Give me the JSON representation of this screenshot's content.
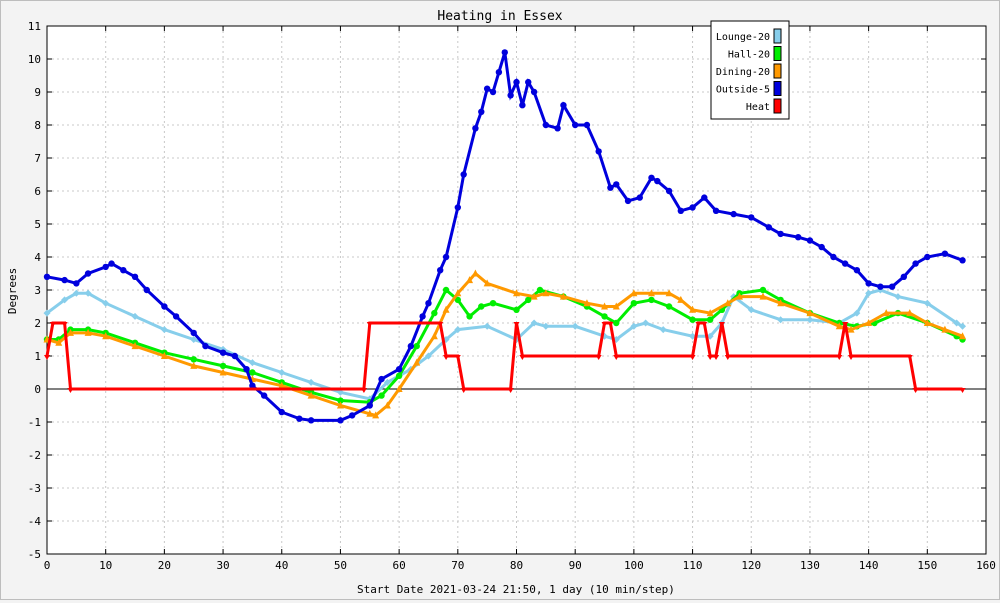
{
  "chart_data": {
    "type": "line",
    "title": "Heating in Essex",
    "xlabel": "Start Date 2021-03-24 21:50, 1 day (10 min/step)",
    "ylabel": "Degrees",
    "xlim": [
      0,
      160
    ],
    "ylim": [
      -5,
      11
    ],
    "xticks": [
      0,
      10,
      20,
      30,
      40,
      50,
      60,
      70,
      80,
      90,
      100,
      110,
      120,
      130,
      140,
      150,
      160
    ],
    "yticks": [
      -5,
      -4,
      -3,
      -2,
      -1,
      0,
      1,
      2,
      3,
      4,
      5,
      6,
      7,
      8,
      9,
      10,
      11
    ],
    "grid": true,
    "legend_position": "top-right",
    "series": [
      {
        "name": "Lounge-20",
        "color": "#87ceeb",
        "marker": "diamond",
        "points": [
          [
            0,
            2.3
          ],
          [
            3,
            2.7
          ],
          [
            5,
            2.9
          ],
          [
            7,
            2.9
          ],
          [
            10,
            2.6
          ],
          [
            15,
            2.2
          ],
          [
            20,
            1.8
          ],
          [
            25,
            1.5
          ],
          [
            30,
            1.2
          ],
          [
            35,
            0.8
          ],
          [
            40,
            0.5
          ],
          [
            45,
            0.2
          ],
          [
            50,
            -0.1
          ],
          [
            55,
            -0.3
          ],
          [
            58,
            0.2
          ],
          [
            62,
            0.6
          ],
          [
            65,
            1.0
          ],
          [
            68,
            1.5
          ],
          [
            70,
            1.8
          ],
          [
            75,
            1.9
          ],
          [
            80,
            1.5
          ],
          [
            83,
            2.0
          ],
          [
            85,
            1.9
          ],
          [
            90,
            1.9
          ],
          [
            95,
            1.6
          ],
          [
            97,
            1.5
          ],
          [
            100,
            1.9
          ],
          [
            102,
            2.0
          ],
          [
            105,
            1.8
          ],
          [
            110,
            1.6
          ],
          [
            113,
            1.6
          ],
          [
            115,
            2.0
          ],
          [
            117,
            2.8
          ],
          [
            120,
            2.4
          ],
          [
            125,
            2.1
          ],
          [
            130,
            2.1
          ],
          [
            135,
            2.0
          ],
          [
            138,
            2.3
          ],
          [
            140,
            2.9
          ],
          [
            142,
            3.0
          ],
          [
            145,
            2.8
          ],
          [
            150,
            2.6
          ],
          [
            155,
            2.0
          ],
          [
            156,
            1.9
          ]
        ]
      },
      {
        "name": "Hall-20",
        "color": "#00ee00",
        "marker": "circle",
        "points": [
          [
            0,
            1.5
          ],
          [
            2,
            1.5
          ],
          [
            4,
            1.8
          ],
          [
            7,
            1.8
          ],
          [
            10,
            1.7
          ],
          [
            15,
            1.4
          ],
          [
            20,
            1.1
          ],
          [
            25,
            0.9
          ],
          [
            30,
            0.7
          ],
          [
            35,
            0.5
          ],
          [
            40,
            0.2
          ],
          [
            45,
            -0.1
          ],
          [
            50,
            -0.35
          ],
          [
            55,
            -0.4
          ],
          [
            57,
            -0.2
          ],
          [
            60,
            0.4
          ],
          [
            63,
            1.3
          ],
          [
            66,
            2.3
          ],
          [
            68,
            3.0
          ],
          [
            70,
            2.7
          ],
          [
            72,
            2.2
          ],
          [
            74,
            2.5
          ],
          [
            76,
            2.6
          ],
          [
            80,
            2.4
          ],
          [
            82,
            2.7
          ],
          [
            84,
            3.0
          ],
          [
            88,
            2.8
          ],
          [
            92,
            2.5
          ],
          [
            95,
            2.2
          ],
          [
            97,
            2.0
          ],
          [
            100,
            2.6
          ],
          [
            103,
            2.7
          ],
          [
            106,
            2.5
          ],
          [
            110,
            2.1
          ],
          [
            113,
            2.1
          ],
          [
            115,
            2.4
          ],
          [
            118,
            2.9
          ],
          [
            122,
            3.0
          ],
          [
            125,
            2.7
          ],
          [
            130,
            2.3
          ],
          [
            135,
            2.0
          ],
          [
            138,
            1.9
          ],
          [
            141,
            2.0
          ],
          [
            145,
            2.3
          ],
          [
            150,
            2.0
          ],
          [
            155,
            1.6
          ],
          [
            156,
            1.5
          ]
        ]
      },
      {
        "name": "Dining-20",
        "color": "#ff9900",
        "marker": "triangle",
        "points": [
          [
            0,
            1.5
          ],
          [
            2,
            1.4
          ],
          [
            4,
            1.7
          ],
          [
            7,
            1.7
          ],
          [
            10,
            1.6
          ],
          [
            15,
            1.3
          ],
          [
            20,
            1.0
          ],
          [
            25,
            0.7
          ],
          [
            30,
            0.5
          ],
          [
            35,
            0.3
          ],
          [
            40,
            0.1
          ],
          [
            45,
            -0.2
          ],
          [
            50,
            -0.5
          ],
          [
            55,
            -0.75
          ],
          [
            56,
            -0.8
          ],
          [
            58,
            -0.5
          ],
          [
            60,
            0.0
          ],
          [
            63,
            0.8
          ],
          [
            66,
            1.6
          ],
          [
            68,
            2.4
          ],
          [
            70,
            2.9
          ],
          [
            72,
            3.3
          ],
          [
            73,
            3.5
          ],
          [
            75,
            3.2
          ],
          [
            80,
            2.9
          ],
          [
            83,
            2.8
          ],
          [
            85,
            2.9
          ],
          [
            88,
            2.8
          ],
          [
            92,
            2.6
          ],
          [
            95,
            2.5
          ],
          [
            97,
            2.5
          ],
          [
            100,
            2.9
          ],
          [
            103,
            2.9
          ],
          [
            106,
            2.9
          ],
          [
            108,
            2.7
          ],
          [
            110,
            2.4
          ],
          [
            113,
            2.3
          ],
          [
            116,
            2.6
          ],
          [
            118,
            2.8
          ],
          [
            122,
            2.8
          ],
          [
            125,
            2.6
          ],
          [
            130,
            2.3
          ],
          [
            135,
            1.9
          ],
          [
            137,
            1.8
          ],
          [
            140,
            2.0
          ],
          [
            143,
            2.3
          ],
          [
            147,
            2.3
          ],
          [
            150,
            2.0
          ],
          [
            153,
            1.8
          ],
          [
            156,
            1.6
          ]
        ]
      },
      {
        "name": "Outside-5",
        "color": "#0000dd",
        "marker": "circle",
        "points": [
          [
            0,
            3.4
          ],
          [
            3,
            3.3
          ],
          [
            5,
            3.2
          ],
          [
            7,
            3.5
          ],
          [
            10,
            3.7
          ],
          [
            11,
            3.8
          ],
          [
            13,
            3.6
          ],
          [
            15,
            3.4
          ],
          [
            17,
            3.0
          ],
          [
            20,
            2.5
          ],
          [
            22,
            2.2
          ],
          [
            25,
            1.7
          ],
          [
            27,
            1.3
          ],
          [
            30,
            1.1
          ],
          [
            32,
            1.0
          ],
          [
            34,
            0.6
          ],
          [
            35,
            0.1
          ],
          [
            37,
            -0.2
          ],
          [
            40,
            -0.7
          ],
          [
            43,
            -0.9
          ],
          [
            45,
            -0.95
          ],
          [
            50,
            -0.95
          ],
          [
            52,
            -0.8
          ],
          [
            55,
            -0.5
          ],
          [
            57,
            0.3
          ],
          [
            60,
            0.6
          ],
          [
            62,
            1.3
          ],
          [
            64,
            2.2
          ],
          [
            65,
            2.6
          ],
          [
            67,
            3.6
          ],
          [
            68,
            4.0
          ],
          [
            70,
            5.5
          ],
          [
            71,
            6.5
          ],
          [
            73,
            7.9
          ],
          [
            74,
            8.4
          ],
          [
            75,
            9.1
          ],
          [
            76,
            9.0
          ],
          [
            77,
            9.6
          ],
          [
            78,
            10.2
          ],
          [
            79,
            8.9
          ],
          [
            80,
            9.3
          ],
          [
            81,
            8.6
          ],
          [
            82,
            9.3
          ],
          [
            83,
            9.0
          ],
          [
            85,
            8.0
          ],
          [
            87,
            7.9
          ],
          [
            88,
            8.6
          ],
          [
            90,
            8.0
          ],
          [
            92,
            8.0
          ],
          [
            94,
            7.2
          ],
          [
            96,
            6.1
          ],
          [
            97,
            6.2
          ],
          [
            99,
            5.7
          ],
          [
            101,
            5.8
          ],
          [
            103,
            6.4
          ],
          [
            104,
            6.3
          ],
          [
            106,
            6.0
          ],
          [
            108,
            5.4
          ],
          [
            110,
            5.5
          ],
          [
            112,
            5.8
          ],
          [
            114,
            5.4
          ],
          [
            117,
            5.3
          ],
          [
            120,
            5.2
          ],
          [
            123,
            4.9
          ],
          [
            125,
            4.7
          ],
          [
            128,
            4.6
          ],
          [
            130,
            4.5
          ],
          [
            132,
            4.3
          ],
          [
            134,
            4.0
          ],
          [
            136,
            3.8
          ],
          [
            138,
            3.6
          ],
          [
            140,
            3.2
          ],
          [
            142,
            3.1
          ],
          [
            144,
            3.1
          ],
          [
            146,
            3.4
          ],
          [
            148,
            3.8
          ],
          [
            150,
            4.0
          ],
          [
            153,
            4.1
          ],
          [
            156,
            3.9
          ]
        ]
      },
      {
        "name": "Heat",
        "color": "#ff0000",
        "marker": "tick",
        "points": [
          [
            0,
            1.0
          ],
          [
            1,
            2.0
          ],
          [
            3,
            2.0
          ],
          [
            4,
            0.0
          ],
          [
            54,
            0.0
          ],
          [
            55,
            2.0
          ],
          [
            67,
            2.0
          ],
          [
            68,
            1.0
          ],
          [
            70,
            1.0
          ],
          [
            71,
            0.0
          ],
          [
            79,
            0.0
          ],
          [
            80,
            2.0
          ],
          [
            81,
            1.0
          ],
          [
            94,
            1.0
          ],
          [
            95,
            2.0
          ],
          [
            96,
            2.0
          ],
          [
            97,
            1.0
          ],
          [
            110,
            1.0
          ],
          [
            111,
            2.0
          ],
          [
            112,
            2.0
          ],
          [
            113,
            1.0
          ],
          [
            114,
            1.0
          ],
          [
            115,
            2.0
          ],
          [
            116,
            1.0
          ],
          [
            135,
            1.0
          ],
          [
            136,
            2.0
          ],
          [
            137,
            1.0
          ],
          [
            147,
            1.0
          ],
          [
            148,
            0.0
          ],
          [
            156,
            0.0
          ]
        ]
      }
    ]
  }
}
